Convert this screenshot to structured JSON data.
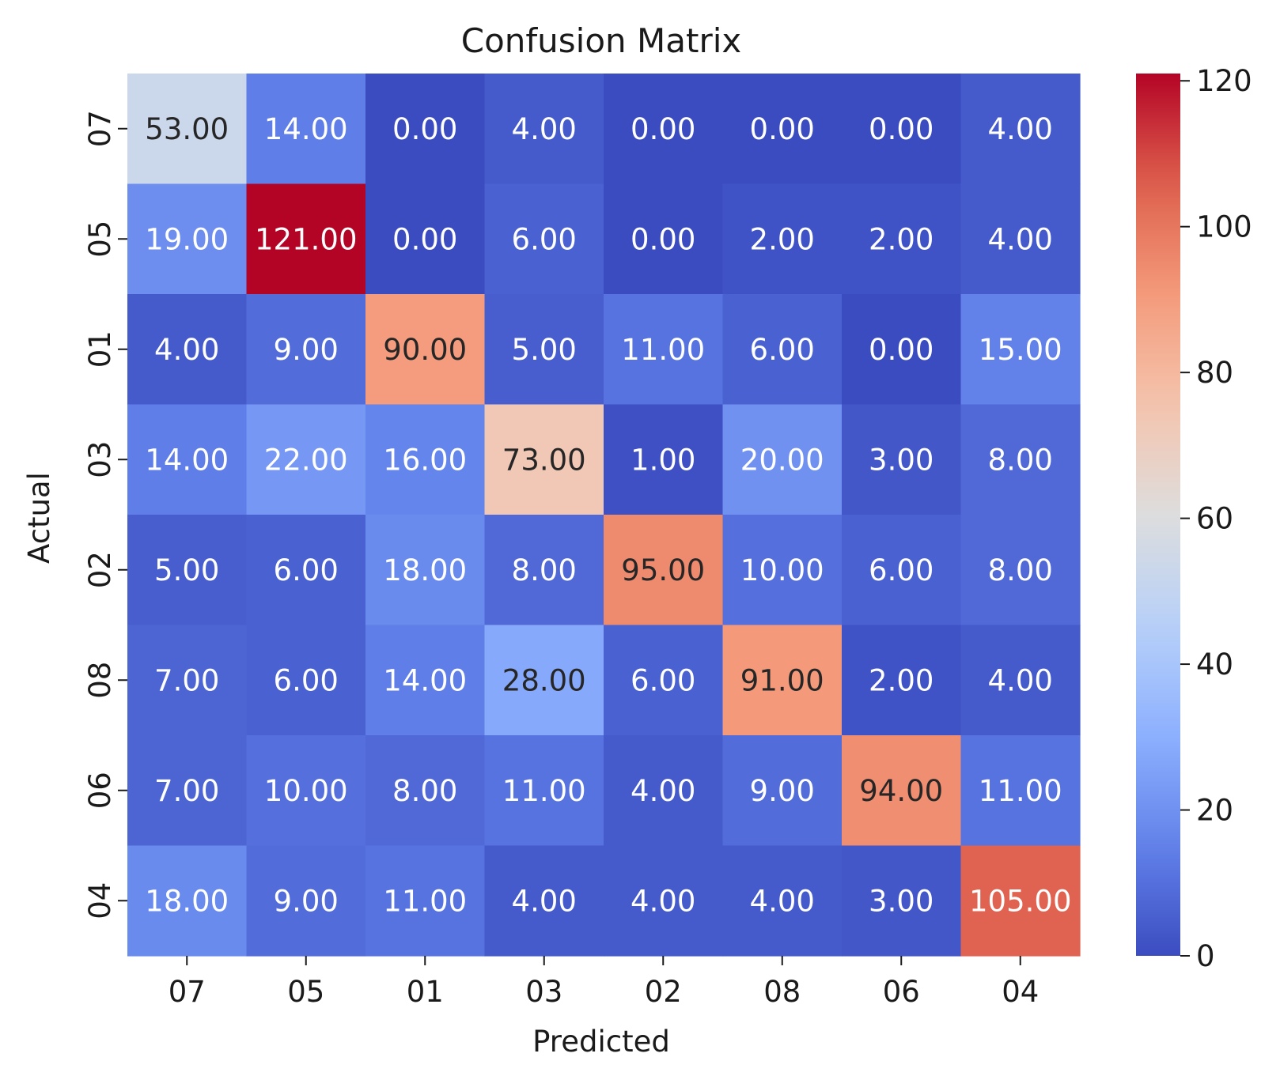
{
  "chart_data": {
    "type": "heatmap",
    "title": "Confusion Matrix",
    "xlabel": "Predicted",
    "ylabel": "Actual",
    "x_labels": [
      "07",
      "05",
      "01",
      "03",
      "02",
      "08",
      "06",
      "04"
    ],
    "y_labels": [
      "07",
      "05",
      "01",
      "03",
      "02",
      "08",
      "06",
      "04"
    ],
    "values": [
      [
        53,
        14,
        0,
        4,
        0,
        0,
        0,
        4
      ],
      [
        19,
        121,
        0,
        6,
        0,
        2,
        2,
        4
      ],
      [
        4,
        9,
        90,
        5,
        11,
        6,
        0,
        15
      ],
      [
        14,
        22,
        16,
        73,
        1,
        20,
        3,
        8
      ],
      [
        5,
        6,
        18,
        8,
        95,
        10,
        6,
        8
      ],
      [
        7,
        6,
        14,
        28,
        6,
        91,
        2,
        4
      ],
      [
        7,
        10,
        8,
        11,
        4,
        9,
        94,
        11
      ],
      [
        18,
        9,
        11,
        4,
        4,
        4,
        3,
        105
      ]
    ],
    "cell_format": "0.00",
    "colormap": "coolwarm",
    "colorbar": {
      "range": [
        0,
        121
      ],
      "ticks": [
        0,
        20,
        40,
        60,
        80,
        100,
        120
      ]
    }
  }
}
